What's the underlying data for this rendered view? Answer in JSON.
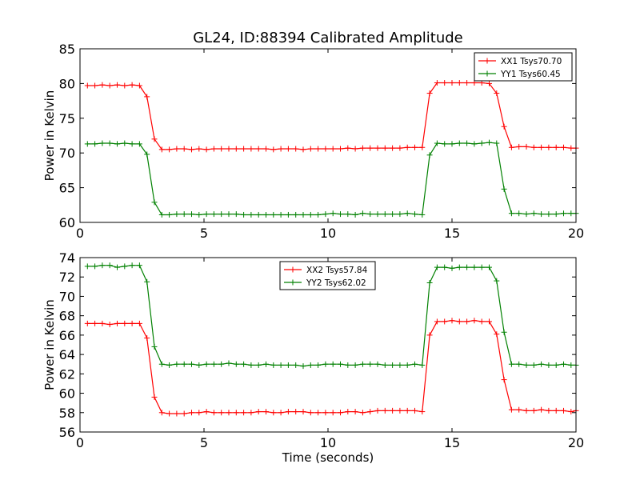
{
  "figure_title": "GL24, ID:88394 Calibrated Amplitude",
  "colors": {
    "red": "#ff0000",
    "green": "#008000",
    "axes": "#000000"
  },
  "chart_data": [
    {
      "type": "line",
      "title": "GL24, ID:88394 Calibrated Amplitude",
      "xlabel": "",
      "ylabel": "Power in Kelvin",
      "xlim": [
        0,
        20
      ],
      "ylim": [
        60,
        85
      ],
      "xticks": [
        0,
        5,
        10,
        15,
        20
      ],
      "yticks": [
        60,
        65,
        70,
        75,
        80,
        85
      ],
      "grid": false,
      "legend_position": "upper-right",
      "x": [
        0.3,
        0.6,
        0.9,
        1.2,
        1.5,
        1.8,
        2.1,
        2.4,
        2.7,
        3.0,
        3.3,
        3.6,
        3.9,
        4.2,
        4.5,
        4.8,
        5.1,
        5.4,
        5.7,
        6.0,
        6.3,
        6.6,
        6.9,
        7.2,
        7.5,
        7.8,
        8.1,
        8.4,
        8.7,
        9.0,
        9.3,
        9.6,
        9.9,
        10.2,
        10.5,
        10.8,
        11.1,
        11.4,
        11.7,
        12.0,
        12.3,
        12.6,
        12.9,
        13.2,
        13.5,
        13.8,
        14.1,
        14.4,
        14.7,
        15.0,
        15.3,
        15.6,
        15.9,
        16.2,
        16.5,
        16.8,
        17.1,
        17.4,
        17.7,
        18.0,
        18.3,
        18.6,
        18.9,
        19.2,
        19.5,
        19.8,
        20.0
      ],
      "series": [
        {
          "name": "XX1 Tsys70.70",
          "color": "#ff0000",
          "values": [
            79.7,
            79.7,
            79.8,
            79.7,
            79.8,
            79.7,
            79.8,
            79.7,
            78.1,
            72.0,
            70.5,
            70.5,
            70.6,
            70.6,
            70.5,
            70.6,
            70.5,
            70.6,
            70.6,
            70.6,
            70.6,
            70.6,
            70.6,
            70.6,
            70.6,
            70.5,
            70.6,
            70.6,
            70.6,
            70.5,
            70.6,
            70.6,
            70.6,
            70.6,
            70.6,
            70.7,
            70.6,
            70.7,
            70.7,
            70.7,
            70.7,
            70.7,
            70.7,
            70.8,
            70.8,
            70.8,
            78.6,
            80.1,
            80.1,
            80.1,
            80.1,
            80.1,
            80.1,
            80.1,
            80.0,
            78.6,
            73.8,
            70.8,
            70.9,
            70.9,
            70.8,
            70.8,
            70.8,
            70.8,
            70.8,
            70.7,
            70.7
          ]
        },
        {
          "name": "YY1 Tsys60.45",
          "color": "#008000",
          "values": [
            71.3,
            71.3,
            71.4,
            71.4,
            71.3,
            71.4,
            71.3,
            71.3,
            69.8,
            62.9,
            61.1,
            61.1,
            61.2,
            61.2,
            61.2,
            61.1,
            61.2,
            61.2,
            61.2,
            61.2,
            61.2,
            61.1,
            61.1,
            61.1,
            61.1,
            61.1,
            61.1,
            61.1,
            61.1,
            61.1,
            61.1,
            61.1,
            61.2,
            61.3,
            61.2,
            61.2,
            61.1,
            61.3,
            61.2,
            61.2,
            61.2,
            61.2,
            61.2,
            61.3,
            61.2,
            61.1,
            69.7,
            71.4,
            71.3,
            71.3,
            71.4,
            71.4,
            71.3,
            71.4,
            71.5,
            71.4,
            64.8,
            61.3,
            61.3,
            61.2,
            61.3,
            61.2,
            61.2,
            61.2,
            61.3,
            61.3,
            61.3
          ]
        }
      ]
    },
    {
      "type": "line",
      "title": "",
      "xlabel": "Time (seconds)",
      "ylabel": "Power in Kelvin",
      "xlim": [
        0,
        20
      ],
      "ylim": [
        56,
        74
      ],
      "xticks": [
        0,
        5,
        10,
        15,
        20
      ],
      "yticks": [
        56,
        58,
        60,
        62,
        64,
        66,
        68,
        70,
        72,
        74
      ],
      "grid": false,
      "legend_position": "upper-center",
      "x": [
        0.3,
        0.6,
        0.9,
        1.2,
        1.5,
        1.8,
        2.1,
        2.4,
        2.7,
        3.0,
        3.3,
        3.6,
        3.9,
        4.2,
        4.5,
        4.8,
        5.1,
        5.4,
        5.7,
        6.0,
        6.3,
        6.6,
        6.9,
        7.2,
        7.5,
        7.8,
        8.1,
        8.4,
        8.7,
        9.0,
        9.3,
        9.6,
        9.9,
        10.2,
        10.5,
        10.8,
        11.1,
        11.4,
        11.7,
        12.0,
        12.3,
        12.6,
        12.9,
        13.2,
        13.5,
        13.8,
        14.1,
        14.4,
        14.7,
        15.0,
        15.3,
        15.6,
        15.9,
        16.2,
        16.5,
        16.8,
        17.1,
        17.4,
        17.7,
        18.0,
        18.3,
        18.6,
        18.9,
        19.2,
        19.5,
        19.8,
        20.0
      ],
      "series": [
        {
          "name": "XX2 Tsys57.84",
          "color": "#ff0000",
          "values": [
            67.2,
            67.2,
            67.2,
            67.1,
            67.2,
            67.2,
            67.2,
            67.2,
            65.7,
            59.6,
            58.0,
            57.9,
            57.9,
            57.9,
            58.0,
            58.0,
            58.1,
            58.0,
            58.0,
            58.0,
            58.0,
            58.0,
            58.0,
            58.1,
            58.1,
            58.0,
            58.0,
            58.1,
            58.1,
            58.1,
            58.0,
            58.0,
            58.0,
            58.0,
            58.0,
            58.1,
            58.1,
            58.0,
            58.1,
            58.2,
            58.2,
            58.2,
            58.2,
            58.2,
            58.2,
            58.1,
            66.0,
            67.4,
            67.4,
            67.5,
            67.4,
            67.4,
            67.5,
            67.4,
            67.4,
            66.1,
            61.4,
            58.3,
            58.3,
            58.2,
            58.2,
            58.3,
            58.2,
            58.2,
            58.2,
            58.1,
            58.2
          ]
        },
        {
          "name": "YY2 Tsys62.02",
          "color": "#008000",
          "values": [
            73.1,
            73.1,
            73.2,
            73.2,
            73.0,
            73.1,
            73.2,
            73.2,
            71.5,
            64.8,
            63.0,
            62.9,
            63.0,
            63.0,
            63.0,
            62.9,
            63.0,
            63.0,
            63.0,
            63.1,
            63.0,
            63.0,
            62.9,
            62.9,
            63.0,
            62.9,
            62.9,
            62.9,
            62.9,
            62.8,
            62.9,
            62.9,
            63.0,
            63.0,
            63.0,
            62.9,
            62.9,
            63.0,
            63.0,
            63.0,
            62.9,
            62.9,
            62.9,
            62.9,
            63.0,
            62.9,
            71.4,
            73.0,
            73.0,
            72.9,
            73.0,
            73.0,
            73.0,
            73.0,
            73.0,
            71.6,
            66.3,
            63.0,
            63.0,
            62.9,
            62.9,
            63.0,
            62.9,
            62.9,
            63.0,
            62.9,
            62.9
          ]
        }
      ]
    }
  ]
}
